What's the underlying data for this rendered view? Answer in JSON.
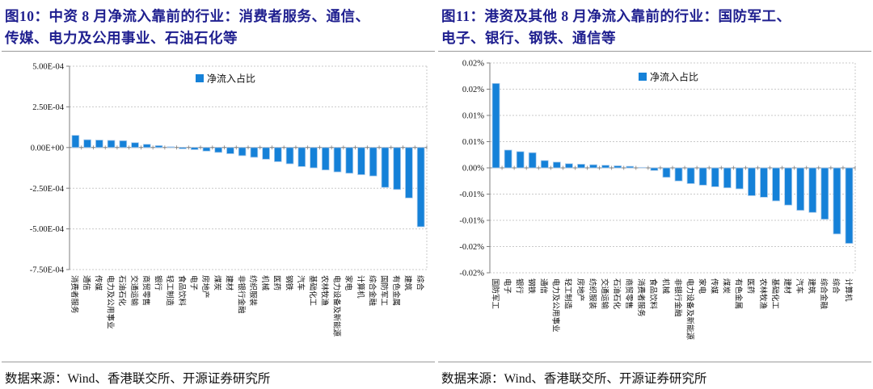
{
  "colors": {
    "bar": "#1581D8",
    "bar_edge": "#AECDEC",
    "title": "#1F1F8F",
    "grid": "#c9c9c9",
    "axis": "#7f7f7f",
    "text": "#111111"
  },
  "figures": [
    {
      "title_lines": [
        "图10：中资 8 月净流入靠前的行业：消费者服务、通信、",
        "传媒、电力及公用事业、石油石化等"
      ],
      "title": "图10：中资 8 月净流入靠前的行业：消费者服务、通信、传媒、电力及公用事业、石油石化等",
      "source": "数据来源：Wind、香港联交所、开源证券研究所",
      "chart_data": {
        "type": "bar",
        "title": "中资8月净流入靠前的行业",
        "legend": "净流入占比",
        "legend_position": "top-center",
        "grid": true,
        "xlabel": "",
        "ylabel": "",
        "ylim": [
          -0.00075,
          0.0005
        ],
        "ytick_values": [
          0.0005,
          0.00025,
          0,
          -0.00025,
          -0.0005,
          -0.00075
        ],
        "ytick_labels": [
          "5.00E-04",
          "2.50E-04",
          "0.00E+00",
          "-2.50E-04",
          "-5.00E-04",
          "-7.50E-04"
        ],
        "categories": [
          "消费者服务",
          "通信",
          "传媒",
          "电力及公用事业",
          "石油石化",
          "交通运输",
          "商贸零售",
          "银行",
          "轻工制造",
          "食品饮料",
          "电子",
          "房地产",
          "煤炭",
          "建材",
          "非银行金融",
          "纺织服装",
          "机械",
          "医药",
          "钢铁",
          "汽车",
          "基础化工",
          "农林牧渔",
          "电力设备及新能源",
          "家电",
          "计算机",
          "综合金融",
          "国防军工",
          "有色金属",
          "建筑",
          "综合"
        ],
        "values": [
          7.5e-05,
          4.8e-05,
          4.6e-05,
          4.4e-05,
          4.2e-05,
          3e-05,
          2e-05,
          1.2e-05,
          5e-06,
          -8e-06,
          -1.3e-05,
          -2.2e-05,
          -3e-05,
          -3.8e-05,
          -5e-05,
          -6e-05,
          -7.2e-05,
          -8.7e-05,
          -0.0001,
          -0.000117,
          -0.000125,
          -0.000138,
          -0.00015,
          -0.000158,
          -0.000167,
          -0.000175,
          -0.000245,
          -0.000258,
          -0.00031,
          -0.000487
        ]
      }
    },
    {
      "title_lines": [
        "图11：港资及其他 8 月净流入靠前的行业：国防军工、",
        "电子、银行、钢铁、通信等"
      ],
      "title": "图11：港资及其他 8 月净流入靠前的行业：国防军工、电子、银行、钢铁、通信等",
      "source": "数据来源：Wind、香港联交所、开源证券研究所",
      "chart_data": {
        "type": "bar",
        "title": "港资及其他8月净流入靠前的行业",
        "legend": "净流入占比",
        "legend_position": "top-center",
        "grid": true,
        "xlabel": "",
        "ylabel": "",
        "ylim": [
          -0.02,
          0.02
        ],
        "yunit": "%",
        "ytick_values": [
          0.02,
          0.015,
          0.01,
          0.005,
          0,
          -0.005,
          -0.01,
          -0.015,
          -0.02
        ],
        "ytick_labels": [
          "0.02%",
          "0.02%",
          "0.01%",
          "0.01%",
          "0.00%",
          "-0.01%",
          "-0.01%",
          "-0.02%",
          "-0.02%"
        ],
        "categories": [
          "国防军工",
          "电子",
          "银行",
          "钢铁",
          "通信",
          "电力及公用事业",
          "轻工制造",
          "房地产",
          "纺织服装",
          "交通运输",
          "石油石化",
          "商贸零售",
          "消费者服务",
          "食品饮料",
          "机械",
          "非银行金融",
          "电力设备及新能源",
          "家电",
          "传媒",
          "煤炭",
          "有色金属",
          "医药",
          "农林牧渔",
          "基础化工",
          "建材",
          "汽车",
          "建筑",
          "综合金融",
          "综合",
          "计算机"
        ],
        "values": [
          0.0161,
          0.0034,
          0.0031,
          0.0029,
          0.0014,
          0.0011,
          0.0008,
          0.0007,
          0.0006,
          0.0005,
          0.0004,
          0.0003,
          0.0001,
          -0.0005,
          -0.0018,
          -0.0025,
          -0.003,
          -0.0033,
          -0.0036,
          -0.0038,
          -0.004,
          -0.0053,
          -0.0056,
          -0.0063,
          -0.0071,
          -0.0081,
          -0.0085,
          -0.0098,
          -0.0126,
          -0.0144
        ]
      }
    }
  ]
}
